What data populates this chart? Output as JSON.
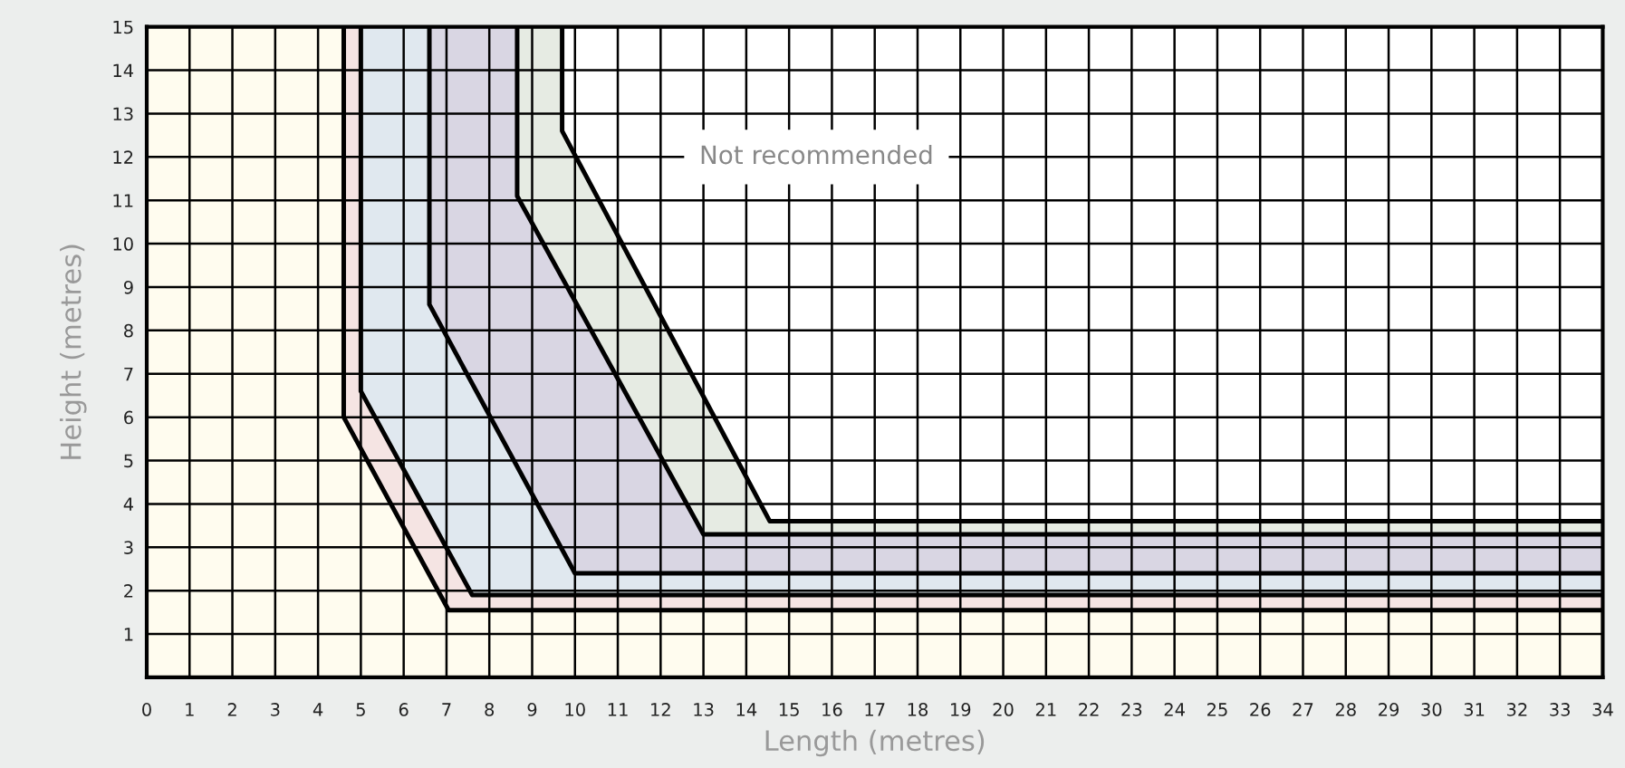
{
  "chart_data": {
    "type": "line",
    "xlabel": "Length (metres)",
    "ylabel": "Height (metres)",
    "annotations": [
      "Not recommended"
    ],
    "xlim": [
      0,
      34
    ],
    "ylim": [
      0,
      15
    ],
    "xticks": [
      0,
      1,
      2,
      3,
      4,
      5,
      6,
      7,
      8,
      9,
      10,
      11,
      12,
      13,
      14,
      15,
      16,
      17,
      18,
      19,
      20,
      21,
      22,
      23,
      24,
      25,
      26,
      27,
      28,
      29,
      30,
      31,
      32,
      33,
      34
    ],
    "yticks": [
      1,
      2,
      3,
      4,
      5,
      6,
      7,
      8,
      9,
      10,
      11,
      12,
      13,
      14,
      15
    ],
    "grid": true,
    "marker": "none",
    "line_style": "solid",
    "series": [
      {
        "color": "#000000",
        "x": [
          9.7,
          9.7,
          14.55,
          34
        ],
        "values": [
          15,
          12.6,
          3.6,
          3.6
        ]
      },
      {
        "color": "#000000",
        "x": [
          8.65,
          8.65,
          13.0,
          34
        ],
        "values": [
          15,
          11.1,
          3.3,
          3.3
        ]
      },
      {
        "color": "#000000",
        "x": [
          6.6,
          6.6,
          10.0,
          34
        ],
        "values": [
          15,
          8.6,
          2.4,
          2.4
        ]
      },
      {
        "color": "#000000",
        "x": [
          5.0,
          5.0,
          7.6,
          34
        ],
        "values": [
          15,
          6.6,
          1.9,
          1.9
        ]
      },
      {
        "color": "#000000",
        "x": [
          4.6,
          4.6,
          7.05,
          34
        ],
        "values": [
          15,
          6.0,
          1.55,
          1.55
        ]
      }
    ]
  }
}
